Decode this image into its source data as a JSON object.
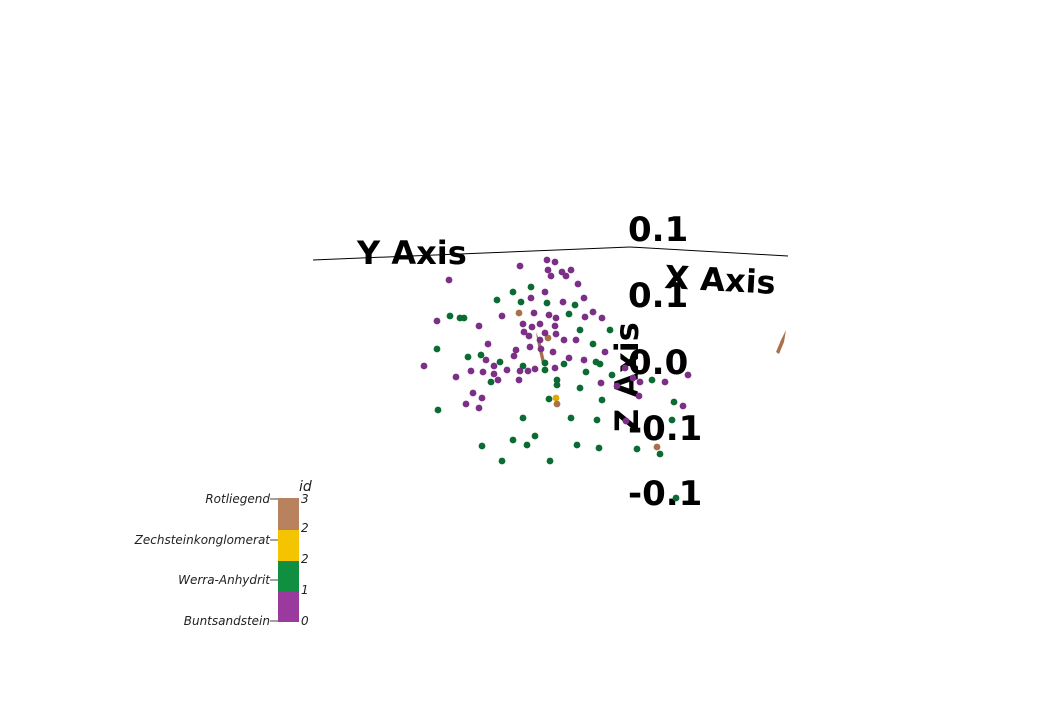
{
  "scene": {
    "axes": {
      "x_title": "X Axis",
      "y_title": "Y Axis",
      "z_title": "Z Axis",
      "tick_labels": [
        "0.1",
        "0.1",
        "0.0",
        "-0.1",
        "-0.1"
      ]
    },
    "legend": {
      "title": "id",
      "entries": [
        {
          "label": "Rotliegend",
          "value": "3",
          "color": "#b8825e"
        },
        {
          "label": "Zechsteinkonglomerat",
          "value": "2",
          "color": "#f5c400"
        },
        {
          "label": "Werra-Anhydrit",
          "value": "1",
          "color": "#0f8f3f"
        },
        {
          "label": "Buntsandstein",
          "value": "0",
          "color": "#9a3a9e"
        }
      ],
      "band_values": [
        "3",
        "2",
        "2",
        "1",
        "0"
      ]
    },
    "colors": {
      "buntsandstein": "#7b2f86",
      "werra_anhydrit": "#0b6b33",
      "zechstein": "#e0a800",
      "rotliegend": "#a8704c"
    }
  }
}
